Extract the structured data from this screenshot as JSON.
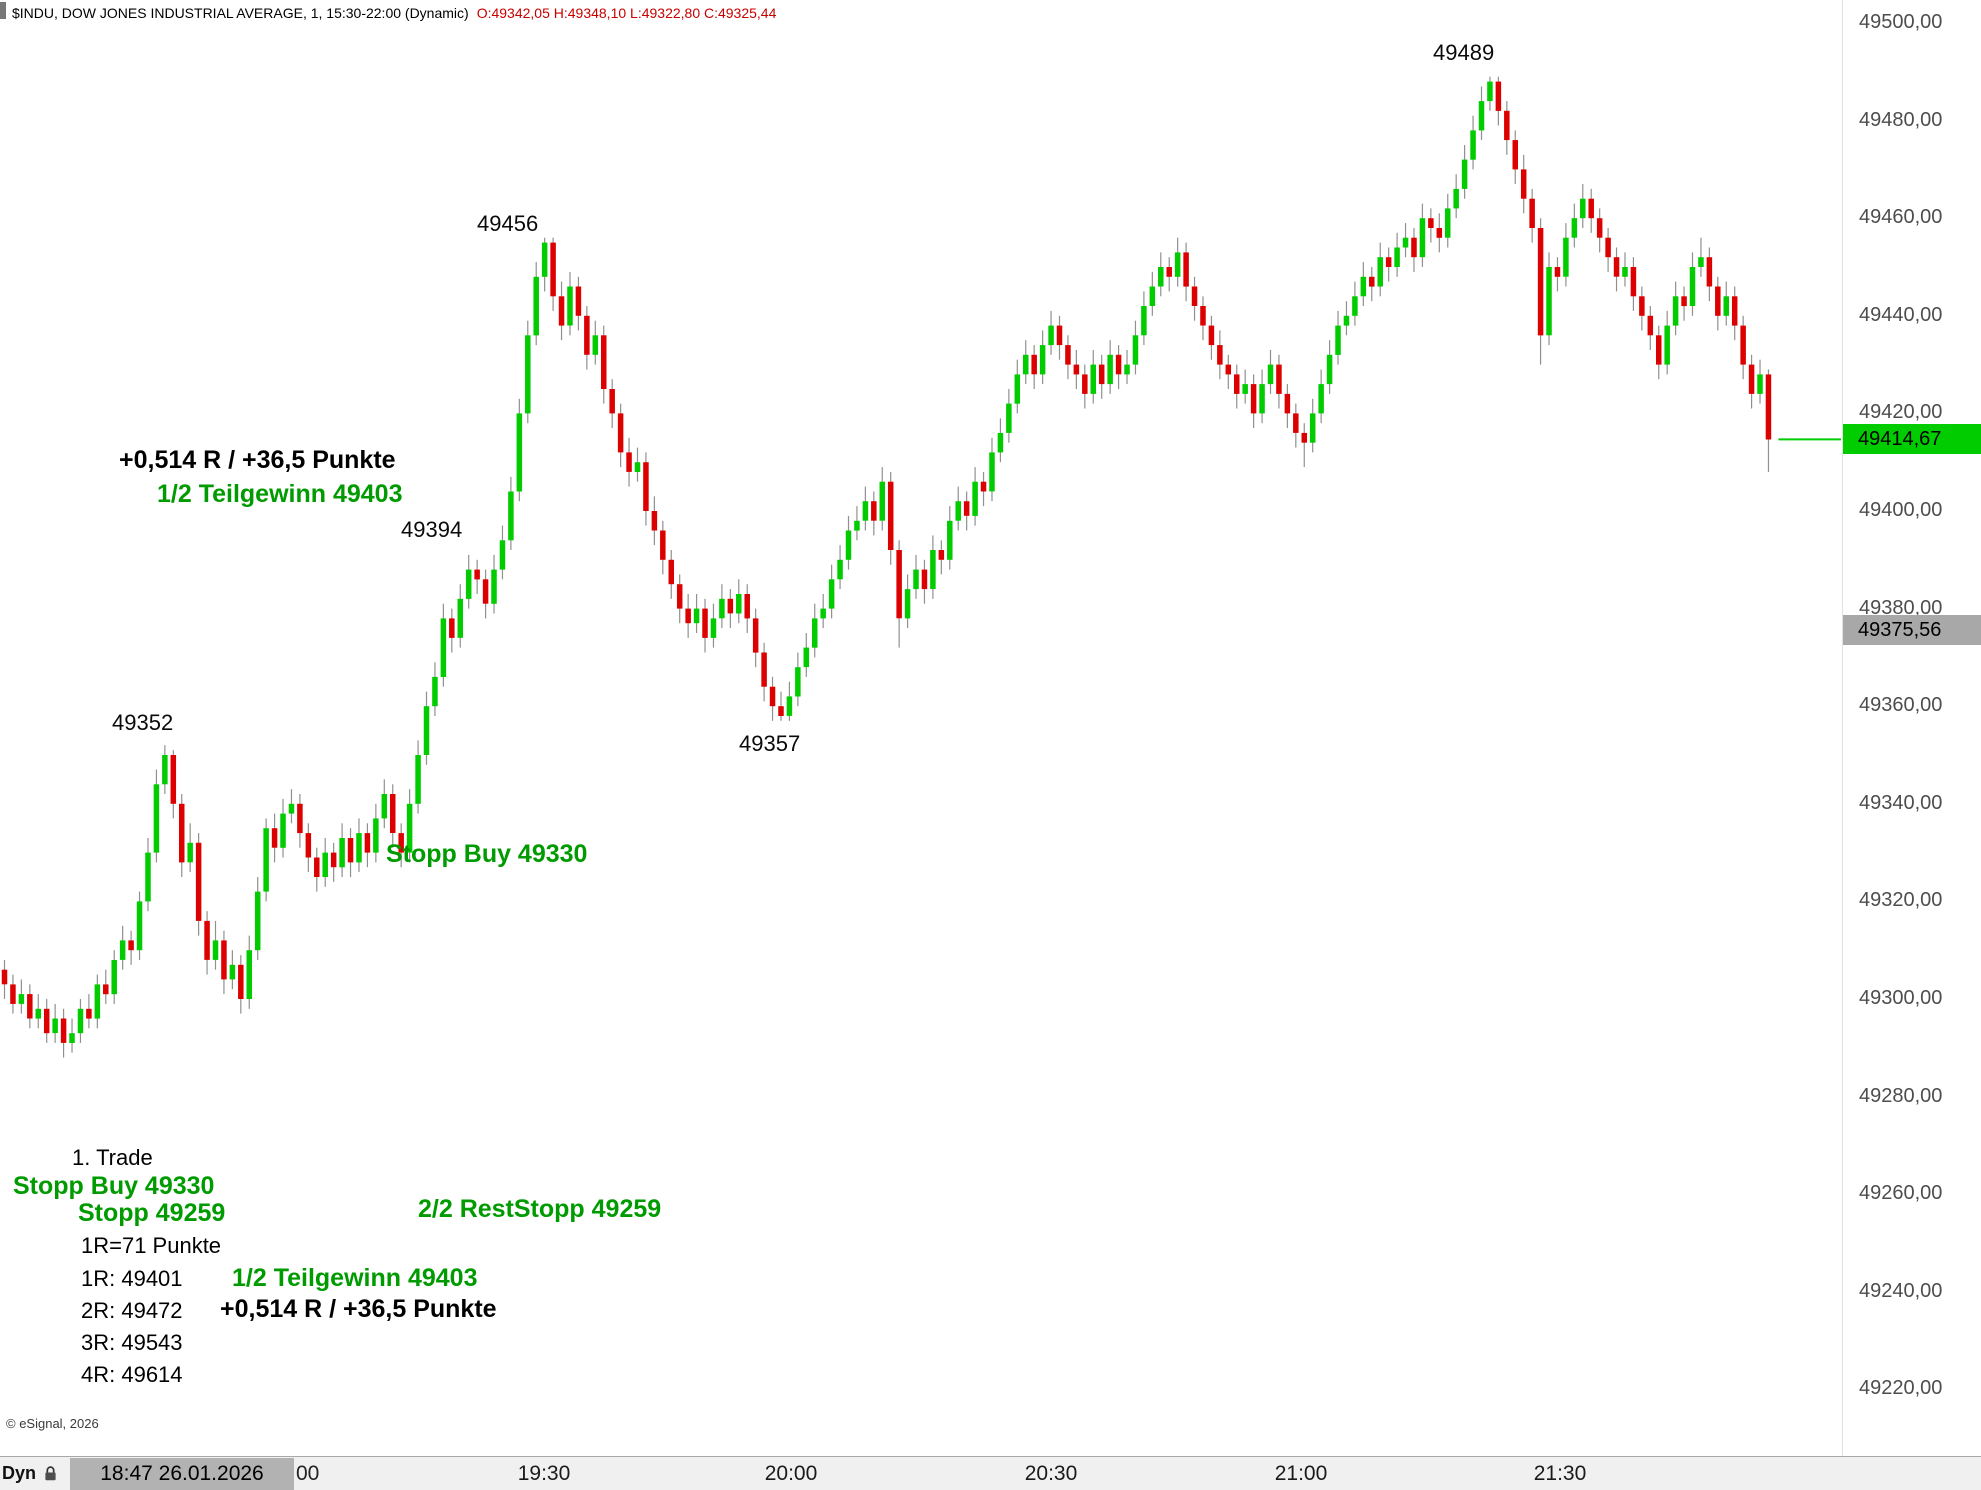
{
  "header": {
    "symbol_info": "$INDU, DOW JONES INDUSTRIAL AVERAGE, 1, 15:30-22:00 (Dynamic)",
    "ohlc": "O:49342,05 H:49348,10 L:49322,80 C:49325,44"
  },
  "price_axis": {
    "labels": [
      "49500,00",
      "49480,00",
      "49460,00",
      "49440,00",
      "49420,00",
      "49400,00",
      "49380,00",
      "49360,00",
      "49340,00",
      "49320,00",
      "49300,00",
      "49280,00",
      "49260,00",
      "49240,00",
      "49220,00"
    ],
    "last_price_badge": "49414,67",
    "reference_badge": "49375,56"
  },
  "time_axis": {
    "dyn": "Dyn",
    "datetime": "18:47 26.01.2026",
    "partial": "00",
    "labels": [
      "19:30",
      "20:00",
      "20:30",
      "21:00",
      "21:30"
    ]
  },
  "annotations": {
    "swing_49352": "49352",
    "swing_49456": "49456",
    "swing_49394": "49394",
    "swing_49357": "49357",
    "swing_49489": "49489",
    "result_r": "+0,514 R / +36,5 Punkte",
    "teilgewinn": "1/2 Teilgewinn 49403",
    "stopp_buy": "Stopp Buy 49330",
    "trade_label": "1. Trade",
    "stopp": "Stopp 49259",
    "rest_stopp": "2/2 RestStopp 49259",
    "r_size": "1R=71 Punkte",
    "r1": "1R: 49401",
    "r2": "2R: 49472",
    "r3": "3R: 49543",
    "r4": "4R: 49614"
  },
  "watermark": "© eSignal, 2026",
  "colors": {
    "up": "#00cc00",
    "down": "#dd0000",
    "wick": "#909090",
    "annotation_green": "#009b00",
    "badge_green": "#00cc00",
    "badge_gray": "#a8a8a8",
    "ohlc_red": "#c80000"
  },
  "chart_data": {
    "type": "candlestick",
    "title": "$INDU, DOW JONES INDUSTRIAL AVERAGE, 1, 15:30-22:00 (Dynamic)",
    "interval_minutes": 1,
    "current_bar": {
      "open": 49342.05,
      "high": 49348.1,
      "low": 49322.8,
      "close": 49325.44
    },
    "last_price": 49414.67,
    "reference_price": 49375.56,
    "y_ticks": [
      49500,
      49480,
      49460,
      49440,
      49420,
      49400,
      49380,
      49360,
      49340,
      49320,
      49300,
      49280,
      49260,
      49240,
      49220
    ],
    "x_ticks": [
      "19:30",
      "20:00",
      "20:30",
      "21:00",
      "21:30"
    ],
    "ylim": [
      49206,
      49505
    ],
    "grid": false,
    "up_color": "#00cc00",
    "down_color": "#dd0000",
    "wick_color": "#909090",
    "candles": [
      [
        49306,
        49308,
        49300,
        49303
      ],
      [
        49303,
        49305,
        49297,
        49299
      ],
      [
        49299,
        49304,
        49297,
        49301
      ],
      [
        49301,
        49303,
        49294,
        49296
      ],
      [
        49296,
        49301,
        49294,
        49298
      ],
      [
        49298,
        49300,
        49291,
        49293
      ],
      [
        49293,
        49299,
        49291,
        49296
      ],
      [
        49296,
        49298,
        49288,
        49291
      ],
      [
        49291,
        49296,
        49289,
        49293
      ],
      [
        49293,
        49300,
        49291,
        49298
      ],
      [
        49298,
        49301,
        49294,
        49296
      ],
      [
        49296,
        49305,
        49294,
        49303
      ],
      [
        49303,
        49306,
        49299,
        49301
      ],
      [
        49301,
        49310,
        49299,
        49308
      ],
      [
        49308,
        49315,
        49306,
        49312
      ],
      [
        49312,
        49314,
        49307,
        49310
      ],
      [
        49310,
        49322,
        49308,
        49320
      ],
      [
        49320,
        49333,
        49318,
        49330
      ],
      [
        49330,
        49347,
        49328,
        49344
      ],
      [
        49344,
        49352,
        49342,
        49350
      ],
      [
        49350,
        49351,
        49337,
        49340
      ],
      [
        49340,
        49342,
        49325,
        49328
      ],
      [
        49328,
        49336,
        49326,
        49332
      ],
      [
        49332,
        49334,
        49313,
        49316
      ],
      [
        49316,
        49318,
        49305,
        49308
      ],
      [
        49308,
        49316,
        49306,
        49312
      ],
      [
        49312,
        49314,
        49301,
        49304
      ],
      [
        49304,
        49310,
        49302,
        49307
      ],
      [
        49307,
        49309,
        49297,
        49300
      ],
      [
        49300,
        49313,
        49298,
        49310
      ],
      [
        49310,
        49325,
        49308,
        49322
      ],
      [
        49322,
        49337,
        49320,
        49335
      ],
      [
        49335,
        49338,
        49328,
        49331
      ],
      [
        49331,
        49341,
        49329,
        49338
      ],
      [
        49338,
        49343,
        49336,
        49340
      ],
      [
        49340,
        49342,
        49331,
        49334
      ],
      [
        49334,
        49336,
        49326,
        49329
      ],
      [
        49329,
        49331,
        49322,
        49325
      ],
      [
        49325,
        49333,
        49323,
        49330
      ],
      [
        49330,
        49332,
        49324,
        49327
      ],
      [
        49327,
        49336,
        49325,
        49333
      ],
      [
        49333,
        49335,
        49325,
        49328
      ],
      [
        49328,
        49337,
        49326,
        49334
      ],
      [
        49334,
        49336,
        49327,
        49330
      ],
      [
        49330,
        49340,
        49328,
        49337
      ],
      [
        49337,
        49345,
        49335,
        49342
      ],
      [
        49342,
        49344,
        49331,
        49334
      ],
      [
        49334,
        49336,
        49327,
        49330
      ],
      [
        49330,
        49343,
        49328,
        49340
      ],
      [
        49340,
        49353,
        49338,
        49350
      ],
      [
        49350,
        49363,
        49348,
        49360
      ],
      [
        49360,
        49369,
        49358,
        49366
      ],
      [
        49366,
        49381,
        49364,
        49378
      ],
      [
        49378,
        49380,
        49371,
        49374
      ],
      [
        49374,
        49385,
        49372,
        49382
      ],
      [
        49382,
        49391,
        49380,
        49388
      ],
      [
        49388,
        49390,
        49383,
        49386
      ],
      [
        49386,
        49388,
        49378,
        49381
      ],
      [
        49381,
        49391,
        49379,
        49388
      ],
      [
        49388,
        49397,
        49386,
        49394
      ],
      [
        49394,
        49407,
        49392,
        49404
      ],
      [
        49404,
        49423,
        49402,
        49420
      ],
      [
        49420,
        49439,
        49418,
        49436
      ],
      [
        49436,
        49451,
        49434,
        49448
      ],
      [
        49448,
        49456,
        49445,
        49455
      ],
      [
        49455,
        49456,
        49441,
        49444
      ],
      [
        49444,
        49447,
        49435,
        49438
      ],
      [
        49438,
        49449,
        49436,
        49446
      ],
      [
        49446,
        49448,
        49437,
        49440
      ],
      [
        49440,
        49442,
        49429,
        49432
      ],
      [
        49432,
        49439,
        49430,
        49436
      ],
      [
        49436,
        49438,
        49422,
        49425
      ],
      [
        49425,
        49427,
        49417,
        49420
      ],
      [
        49420,
        49422,
        49409,
        49412
      ],
      [
        49412,
        49415,
        49405,
        49408
      ],
      [
        49408,
        49413,
        49406,
        49410
      ],
      [
        49410,
        49412,
        49397,
        49400
      ],
      [
        49400,
        49403,
        49393,
        49396
      ],
      [
        49396,
        49398,
        49387,
        49390
      ],
      [
        49390,
        49392,
        49382,
        49385
      ],
      [
        49385,
        49387,
        49377,
        49380
      ],
      [
        49380,
        49383,
        49374,
        49377
      ],
      [
        49377,
        49383,
        49375,
        49380
      ],
      [
        49380,
        49382,
        49371,
        49374
      ],
      [
        49374,
        49381,
        49372,
        49378
      ],
      [
        49378,
        49385,
        49376,
        49382
      ],
      [
        49382,
        49384,
        49376,
        49379
      ],
      [
        49379,
        49386,
        49377,
        49383
      ],
      [
        49383,
        49385,
        49375,
        49378
      ],
      [
        49378,
        49380,
        49368,
        49371
      ],
      [
        49371,
        49373,
        49361,
        49364
      ],
      [
        49364,
        49366,
        49357,
        49360
      ],
      [
        49360,
        49363,
        49357,
        49358
      ],
      [
        49358,
        49365,
        49357,
        49362
      ],
      [
        49362,
        49371,
        49360,
        49368
      ],
      [
        49368,
        49375,
        49366,
        49372
      ],
      [
        49372,
        49381,
        49370,
        49378
      ],
      [
        49378,
        49383,
        49376,
        49380
      ],
      [
        49380,
        49389,
        49378,
        49386
      ],
      [
        49386,
        49393,
        49384,
        49390
      ],
      [
        49390,
        49399,
        49388,
        49396
      ],
      [
        49396,
        49401,
        49394,
        49398
      ],
      [
        49398,
        49405,
        49396,
        49402
      ],
      [
        49402,
        49404,
        49395,
        49398
      ],
      [
        49398,
        49409,
        49396,
        49406
      ],
      [
        49406,
        49408,
        49389,
        49392
      ],
      [
        49392,
        49394,
        49372,
        49378
      ],
      [
        49378,
        49387,
        49376,
        49384
      ],
      [
        49384,
        49391,
        49382,
        49388
      ],
      [
        49388,
        49390,
        49381,
        49384
      ],
      [
        49384,
        49395,
        49382,
        49392
      ],
      [
        49392,
        49394,
        49387,
        49390
      ],
      [
        49390,
        49401,
        49388,
        49398
      ],
      [
        49398,
        49405,
        49396,
        49402
      ],
      [
        49402,
        49404,
        49396,
        49399
      ],
      [
        49399,
        49409,
        49397,
        49406
      ],
      [
        49406,
        49408,
        49401,
        49404
      ],
      [
        49404,
        49415,
        49402,
        49412
      ],
      [
        49412,
        49419,
        49410,
        49416
      ],
      [
        49416,
        49425,
        49414,
        49422
      ],
      [
        49422,
        49431,
        49420,
        49428
      ],
      [
        49428,
        49435,
        49426,
        49432
      ],
      [
        49432,
        49434,
        49425,
        49428
      ],
      [
        49428,
        49437,
        49426,
        49434
      ],
      [
        49434,
        49441,
        49432,
        49438
      ],
      [
        49438,
        49440,
        49431,
        49434
      ],
      [
        49434,
        49436,
        49427,
        49430
      ],
      [
        49430,
        49433,
        49425,
        49428
      ],
      [
        49428,
        49430,
        49421,
        49424
      ],
      [
        49424,
        49433,
        49422,
        49430
      ],
      [
        49430,
        49432,
        49423,
        49426
      ],
      [
        49426,
        49435,
        49424,
        49432
      ],
      [
        49432,
        49434,
        49425,
        49428
      ],
      [
        49428,
        49433,
        49426,
        49430
      ],
      [
        49430,
        49439,
        49428,
        49436
      ],
      [
        49436,
        49445,
        49434,
        49442
      ],
      [
        49442,
        49449,
        49440,
        49446
      ],
      [
        49446,
        49453,
        49444,
        49450
      ],
      [
        49450,
        49452,
        49445,
        49448
      ],
      [
        49448,
        49456,
        49446,
        49453
      ],
      [
        49453,
        49455,
        49443,
        49446
      ],
      [
        49446,
        49448,
        49439,
        49442
      ],
      [
        49442,
        49444,
        49435,
        49438
      ],
      [
        49438,
        49440,
        49431,
        49434
      ],
      [
        49434,
        49437,
        49427,
        49430
      ],
      [
        49430,
        49432,
        49425,
        49428
      ],
      [
        49428,
        49430,
        49421,
        49424
      ],
      [
        49424,
        49429,
        49422,
        49426
      ],
      [
        49426,
        49428,
        49417,
        49420
      ],
      [
        49420,
        49429,
        49418,
        49426
      ],
      [
        49426,
        49433,
        49424,
        49430
      ],
      [
        49430,
        49432,
        49421,
        49424
      ],
      [
        49424,
        49426,
        49417,
        49420
      ],
      [
        49420,
        49422,
        49413,
        49416
      ],
      [
        49416,
        49418,
        49409,
        49414
      ],
      [
        49414,
        49423,
        49412,
        49420
      ],
      [
        49420,
        49429,
        49418,
        49426
      ],
      [
        49426,
        49435,
        49424,
        49432
      ],
      [
        49432,
        49441,
        49430,
        49438
      ],
      [
        49438,
        49443,
        49436,
        49440
      ],
      [
        49440,
        49447,
        49438,
        49444
      ],
      [
        49444,
        49451,
        49442,
        49448
      ],
      [
        49448,
        49450,
        49443,
        49446
      ],
      [
        49446,
        49455,
        49444,
        49452
      ],
      [
        49452,
        49454,
        49447,
        49450
      ],
      [
        49450,
        49457,
        49448,
        49454
      ],
      [
        49454,
        49459,
        49452,
        49456
      ],
      [
        49456,
        49458,
        49449,
        49452
      ],
      [
        49452,
        49463,
        49450,
        49460
      ],
      [
        49460,
        49462,
        49455,
        49458
      ],
      [
        49458,
        49461,
        49453,
        49456
      ],
      [
        49456,
        49465,
        49454,
        49462
      ],
      [
        49462,
        49469,
        49460,
        49466
      ],
      [
        49466,
        49475,
        49464,
        49472
      ],
      [
        49472,
        49481,
        49470,
        49478
      ],
      [
        49478,
        49487,
        49476,
        49484
      ],
      [
        49484,
        49489,
        49482,
        49488
      ],
      [
        49488,
        49489,
        49479,
        49482
      ],
      [
        49482,
        49484,
        49473,
        49476
      ],
      [
        49476,
        49478,
        49467,
        49470
      ],
      [
        49470,
        49473,
        49461,
        49464
      ],
      [
        49464,
        49466,
        49455,
        49458
      ],
      [
        49458,
        49460,
        49430,
        49436
      ],
      [
        49436,
        49453,
        49434,
        49450
      ],
      [
        49450,
        49452,
        49445,
        49448
      ],
      [
        49448,
        49459,
        49446,
        49456
      ],
      [
        49456,
        49463,
        49454,
        49460
      ],
      [
        49460,
        49467,
        49458,
        49464
      ],
      [
        49464,
        49466,
        49457,
        49460
      ],
      [
        49460,
        49462,
        49453,
        49456
      ],
      [
        49456,
        49458,
        49449,
        49452
      ],
      [
        49452,
        49454,
        49445,
        49448
      ],
      [
        49448,
        49453,
        49446,
        49450
      ],
      [
        49450,
        49452,
        49441,
        49444
      ],
      [
        49444,
        49446,
        49437,
        49440
      ],
      [
        49440,
        49442,
        49433,
        49436
      ],
      [
        49436,
        49438,
        49427,
        49430
      ],
      [
        49430,
        49441,
        49428,
        49438
      ],
      [
        49438,
        49447,
        49436,
        49444
      ],
      [
        49444,
        49446,
        49439,
        49442
      ],
      [
        49442,
        49453,
        49440,
        49450
      ],
      [
        49450,
        49456,
        49448,
        49452
      ],
      [
        49452,
        49454,
        49443,
        49446
      ],
      [
        49446,
        49448,
        49437,
        49440
      ],
      [
        49440,
        49447,
        49438,
        49444
      ],
      [
        49444,
        49446,
        49435,
        49438
      ],
      [
        49438,
        49440,
        49427,
        49430
      ],
      [
        49430,
        49432,
        49421,
        49424
      ],
      [
        49424,
        49431,
        49422,
        49428
      ],
      [
        49428,
        49429,
        49408,
        49414.67
      ]
    ]
  }
}
